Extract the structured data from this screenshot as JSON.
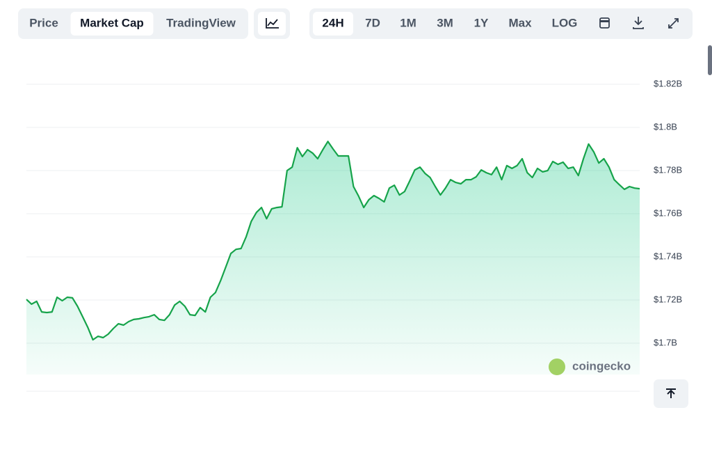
{
  "tabs": [
    "Price",
    "Market Cap",
    "TradingView"
  ],
  "active_tab": 1,
  "ranges": [
    "24H",
    "7D",
    "1M",
    "3M",
    "1Y",
    "Max",
    "LOG"
  ],
  "active_range": 0,
  "watermark": "coingecko",
  "chart_data": {
    "type": "area",
    "color": "#16a34a",
    "grid": true,
    "ylim": [
      1.6855,
      1.8284
    ],
    "yticks": [
      {
        "value": 1.7,
        "label": "$1.7B"
      },
      {
        "value": 1.72,
        "label": "$1.72B"
      },
      {
        "value": 1.74,
        "label": "$1.74B"
      },
      {
        "value": 1.76,
        "label": "$1.76B"
      },
      {
        "value": 1.78,
        "label": "$1.78B"
      },
      {
        "value": 1.8,
        "label": "$1.8B"
      },
      {
        "value": 1.82,
        "label": "$1.82B"
      }
    ],
    "values": [
      1.7203,
      1.7181,
      1.7194,
      1.7145,
      1.7142,
      1.7145,
      1.7213,
      1.7197,
      1.7213,
      1.721,
      1.7171,
      1.7123,
      1.7074,
      1.7016,
      1.7032,
      1.7026,
      1.7042,
      1.7068,
      1.709,
      1.7084,
      1.71,
      1.711,
      1.7113,
      1.7119,
      1.7123,
      1.7132,
      1.711,
      1.7106,
      1.7132,
      1.7177,
      1.7194,
      1.7171,
      1.7132,
      1.7129,
      1.7165,
      1.7145,
      1.7213,
      1.7235,
      1.729,
      1.7352,
      1.7416,
      1.7435,
      1.7439,
      1.7494,
      1.7565,
      1.7606,
      1.7629,
      1.7577,
      1.7623,
      1.7629,
      1.7632,
      1.78,
      1.7816,
      1.7906,
      1.7865,
      1.7897,
      1.7881,
      1.7855,
      1.7897,
      1.7935,
      1.79,
      1.7868,
      1.7868,
      1.7868,
      1.7726,
      1.7681,
      1.7629,
      1.7665,
      1.7684,
      1.7671,
      1.7655,
      1.7719,
      1.7732,
      1.7687,
      1.7703,
      1.7752,
      1.7803,
      1.7816,
      1.7787,
      1.7768,
      1.7726,
      1.7687,
      1.7719,
      1.7758,
      1.7745,
      1.7739,
      1.7758,
      1.7758,
      1.7771,
      1.7803,
      1.779,
      1.7781,
      1.7816,
      1.7758,
      1.7823,
      1.781,
      1.7823,
      1.7855,
      1.779,
      1.7768,
      1.781,
      1.7794,
      1.78,
      1.7842,
      1.7829,
      1.7839,
      1.781,
      1.7816,
      1.7777,
      1.7855,
      1.7923,
      1.7887,
      1.7835,
      1.7855,
      1.7816,
      1.7758,
      1.7735,
      1.7713,
      1.7726,
      1.7719,
      1.7716
    ]
  }
}
